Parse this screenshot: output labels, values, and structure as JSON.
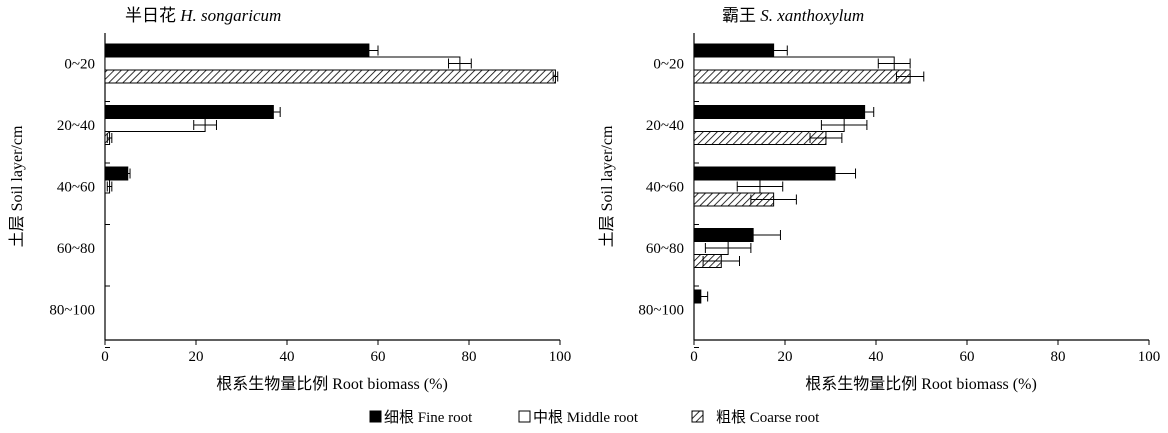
{
  "chart_data": [
    {
      "type": "bar",
      "orientation": "horizontal",
      "title_cn": "半日花",
      "title_latin": "H. songaricum",
      "categories": [
        "0~20",
        "20~40",
        "40~60",
        "60~80",
        "80~100"
      ],
      "xlabel": "根系生物量比例 Root biomass (%)",
      "ylabel": "土层 Soil layer/cm",
      "xlim": [
        0,
        100
      ],
      "xticks": [
        0,
        20,
        40,
        60,
        80,
        100
      ],
      "series": [
        {
          "name": "细根 Fine root",
          "values": [
            58,
            37,
            5,
            0,
            0
          ],
          "errors": [
            2,
            1.5,
            0.5,
            0,
            0
          ]
        },
        {
          "name": "中根 Middle root",
          "values": [
            78,
            22,
            1,
            0,
            0
          ],
          "errors": [
            2.5,
            2.5,
            0.5,
            0,
            0
          ]
        },
        {
          "name": "粗根 Coarse root",
          "values": [
            99,
            1,
            0,
            0,
            0
          ],
          "errors": [
            0.5,
            0.5,
            0,
            0,
            0
          ]
        }
      ]
    },
    {
      "type": "bar",
      "orientation": "horizontal",
      "title_cn": "霸王",
      "title_latin": "S. xanthoxylum",
      "categories": [
        "0~20",
        "20~40",
        "40~60",
        "60~80",
        "80~100"
      ],
      "xlabel": "根系生物量比例 Root biomass (%)",
      "ylabel": "土层 Soil layer/cm",
      "xlim": [
        0,
        100
      ],
      "xticks": [
        0,
        20,
        40,
        60,
        80,
        100
      ],
      "series": [
        {
          "name": "细根 Fine root",
          "values": [
            17.5,
            37.5,
            31,
            13,
            1.5
          ],
          "errors": [
            3,
            2,
            4.5,
            6,
            1.5
          ]
        },
        {
          "name": "中根 Middle root",
          "values": [
            44,
            33,
            14.5,
            7.5,
            0
          ],
          "errors": [
            3.5,
            5,
            5,
            5,
            0
          ]
        },
        {
          "name": "粗根 Coarse root",
          "values": [
            47.5,
            29,
            17.5,
            6,
            0
          ],
          "errors": [
            3,
            3.5,
            5,
            4,
            0
          ]
        }
      ]
    }
  ],
  "legend": [
    {
      "label": "细根 Fine root",
      "fill": "solid"
    },
    {
      "label": "中根 Middle root",
      "fill": "white"
    },
    {
      "label": "粗根 Coarse root",
      "fill": "hatch"
    }
  ],
  "colors": {
    "fine": "#000000",
    "middle": "#ffffff",
    "coarse_hatch": "#000000",
    "axis": "#000000"
  }
}
